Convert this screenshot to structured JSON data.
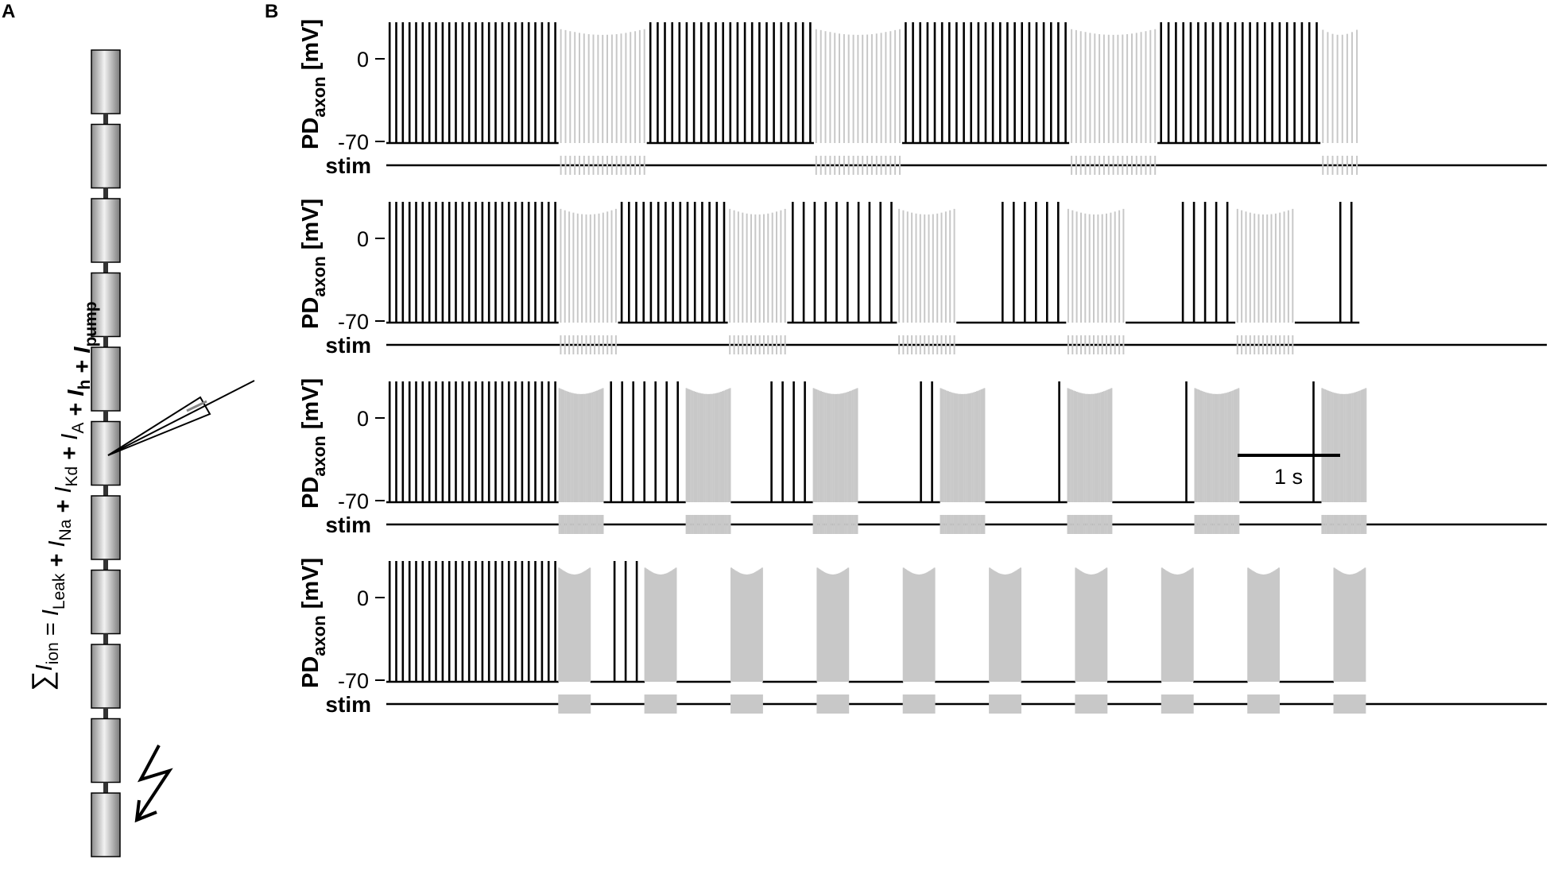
{
  "panel_a": {
    "label": "A",
    "compartment_count": 11,
    "equation": {
      "sum_symbol": "∑",
      "parts": [
        {
          "text": "I",
          "style": "italic",
          "sub": "ion"
        },
        {
          "text": " = ",
          "style": "normal"
        },
        {
          "text": "I",
          "style": "italic",
          "sub": "Leak"
        },
        {
          "text": " + ",
          "style": "bold"
        },
        {
          "text": "I",
          "style": "italic",
          "sub": "Na"
        },
        {
          "text": " + ",
          "style": "bold"
        },
        {
          "text": "I",
          "style": "italic",
          "sub": "Kd"
        },
        {
          "text": " + ",
          "style": "bold"
        },
        {
          "text": "I",
          "style": "italic",
          "sub": "A"
        },
        {
          "text": " + ",
          "style": "bold"
        },
        {
          "text": "I",
          "style": "bolditalic",
          "sub": "h"
        },
        {
          "text": " + ",
          "style": "bold"
        },
        {
          "text": "I",
          "style": "bolditalic",
          "sub": "pump"
        }
      ]
    },
    "icons": [
      "electrode-icon",
      "lightning-stimulus-icon"
    ]
  },
  "panel_b": {
    "label": "B",
    "ylabel_main": "PD",
    "ylabel_sub": "axon",
    "ylabel_unit": "[mV]",
    "yticks": [
      "0",
      "-70"
    ],
    "stim_label": "stim",
    "scale_bar": {
      "label": "1 s",
      "duration_s": 1
    },
    "colors": {
      "own_spikes": "#000000",
      "stim_driven": "#c8c8c8",
      "trace_line": "#000000"
    },
    "rows": [
      {
        "row": 1,
        "blocks": [
          {
            "t": 0,
            "dur": 1.68,
            "type": "own",
            "n": 26,
            "fr": 1.0
          },
          {
            "t": 1.68,
            "dur": 0.86,
            "type": "stim",
            "n": 19,
            "fr": 0.94
          },
          {
            "t": 2.54,
            "dur": 1.63,
            "type": "own",
            "n": 23,
            "fr": 1.0
          },
          {
            "t": 4.17,
            "dur": 0.86,
            "type": "stim",
            "n": 19,
            "fr": 0.94
          },
          {
            "t": 5.03,
            "dur": 1.63,
            "type": "own",
            "n": 23,
            "fr": 1.0
          },
          {
            "t": 6.66,
            "dur": 0.86,
            "type": "stim",
            "n": 19,
            "fr": 0.94
          },
          {
            "t": 7.52,
            "dur": 1.59,
            "type": "own",
            "n": 22,
            "fr": 1.0
          },
          {
            "t": 9.11,
            "dur": 0.38,
            "type": "stim",
            "n": 8,
            "fr": 0.94
          }
        ]
      },
      {
        "row": 2,
        "blocks": [
          {
            "t": 0,
            "dur": 1.68,
            "type": "own",
            "n": 26,
            "fr": 1.0
          },
          {
            "t": 1.68,
            "dur": 0.58,
            "type": "stim",
            "n": 14,
            "fr": 0.94
          },
          {
            "t": 2.26,
            "dur": 1.07,
            "type": "own",
            "n": 15,
            "fr": 1.0
          },
          {
            "t": 3.33,
            "dur": 0.58,
            "type": "stim",
            "n": 14,
            "fr": 0.94
          },
          {
            "t": 3.91,
            "dur": 1.07,
            "type": "own",
            "n": 10,
            "fr": 1.0
          },
          {
            "t": 4.98,
            "dur": 0.58,
            "type": "stim",
            "n": 14,
            "fr": 0.94
          },
          {
            "t": 5.56,
            "dur": 1.07,
            "type": "own",
            "n": 6,
            "fr": 1.0
          },
          {
            "t": 6.63,
            "dur": 0.58,
            "type": "stim",
            "n": 14,
            "fr": 0.94
          },
          {
            "t": 7.21,
            "dur": 1.07,
            "type": "own",
            "n": 5,
            "fr": 1.0
          },
          {
            "t": 8.28,
            "dur": 0.58,
            "type": "stim",
            "n": 14,
            "fr": 0.94
          },
          {
            "t": 8.86,
            "dur": 0.63,
            "type": "own",
            "n": 2,
            "fr": 1.0
          }
        ]
      },
      {
        "row": 3,
        "blocks": [
          {
            "t": 0,
            "dur": 1.68,
            "type": "own",
            "n": 26,
            "fr": 1.0
          },
          {
            "t": 1.68,
            "dur": 0.44,
            "type": "stim",
            "n": 30,
            "fr": 0.94
          },
          {
            "t": 2.12,
            "dur": 0.8,
            "type": "own",
            "n": 7,
            "fr": 1.0
          },
          {
            "t": 2.92,
            "dur": 0.44,
            "type": "stim",
            "n": 30,
            "fr": 0.94
          },
          {
            "t": 3.36,
            "dur": 0.8,
            "type": "own",
            "n": 4,
            "fr": 1.0
          },
          {
            "t": 4.16,
            "dur": 0.44,
            "type": "stim",
            "n": 30,
            "fr": 0.94
          },
          {
            "t": 4.6,
            "dur": 0.8,
            "type": "own",
            "n": 2,
            "fr": 1.0
          },
          {
            "t": 5.4,
            "dur": 0.44,
            "type": "stim",
            "n": 30,
            "fr": 0.94
          },
          {
            "t": 5.84,
            "dur": 0.8,
            "type": "own",
            "n": 1,
            "fr": 1.0
          },
          {
            "t": 6.64,
            "dur": 0.44,
            "type": "stim",
            "n": 30,
            "fr": 0.94
          },
          {
            "t": 7.08,
            "dur": 0.8,
            "type": "own",
            "n": 1,
            "fr": 1.0
          },
          {
            "t": 7.88,
            "dur": 0.44,
            "type": "stim",
            "n": 30,
            "fr": 0.94
          },
          {
            "t": 8.32,
            "dur": 0.8,
            "type": "own",
            "n": 1,
            "fr": 1.0
          },
          {
            "t": 9.12,
            "dur": 0.44,
            "type": "stim",
            "n": 30,
            "fr": 0.94
          }
        ]
      },
      {
        "row": 4,
        "blocks": [
          {
            "t": 0,
            "dur": 1.68,
            "type": "own",
            "n": 26,
            "fr": 1.0
          },
          {
            "t": 1.68,
            "dur": 0.31,
            "type": "stim",
            "n": 36,
            "fr": 0.89
          },
          {
            "t": 1.99,
            "dur": 0.53,
            "type": "own",
            "n": 3,
            "fr": 1.0
          },
          {
            "t": 2.52,
            "dur": 0.31,
            "type": "stim",
            "n": 36,
            "fr": 0.89
          },
          {
            "t": 2.83,
            "dur": 0.53,
            "type": "own",
            "n": 0,
            "fr": 1.0
          },
          {
            "t": 3.36,
            "dur": 0.31,
            "type": "stim",
            "n": 36,
            "fr": 0.89
          },
          {
            "t": 3.67,
            "dur": 0.53,
            "type": "own",
            "n": 0,
            "fr": 1.0
          },
          {
            "t": 4.2,
            "dur": 0.31,
            "type": "stim",
            "n": 36,
            "fr": 0.89
          },
          {
            "t": 4.51,
            "dur": 0.53,
            "type": "own",
            "n": 0,
            "fr": 1.0
          },
          {
            "t": 5.04,
            "dur": 0.31,
            "type": "stim",
            "n": 36,
            "fr": 0.89
          },
          {
            "t": 5.35,
            "dur": 0.53,
            "type": "own",
            "n": 0,
            "fr": 1.0
          },
          {
            "t": 5.88,
            "dur": 0.31,
            "type": "stim",
            "n": 36,
            "fr": 0.89
          },
          {
            "t": 6.19,
            "dur": 0.53,
            "type": "own",
            "n": 0,
            "fr": 1.0
          },
          {
            "t": 6.72,
            "dur": 0.31,
            "type": "stim",
            "n": 36,
            "fr": 0.89
          },
          {
            "t": 7.03,
            "dur": 0.53,
            "type": "own",
            "n": 0,
            "fr": 1.0
          },
          {
            "t": 7.56,
            "dur": 0.31,
            "type": "stim",
            "n": 36,
            "fr": 0.89
          },
          {
            "t": 7.87,
            "dur": 0.53,
            "type": "own",
            "n": 0,
            "fr": 1.0
          },
          {
            "t": 8.4,
            "dur": 0.31,
            "type": "stim",
            "n": 36,
            "fr": 0.89
          },
          {
            "t": 8.71,
            "dur": 0.53,
            "type": "own",
            "n": 0,
            "fr": 1.0
          },
          {
            "t": 9.24,
            "dur": 0.31,
            "type": "stim",
            "n": 36,
            "fr": 0.89
          }
        ]
      }
    ]
  }
}
